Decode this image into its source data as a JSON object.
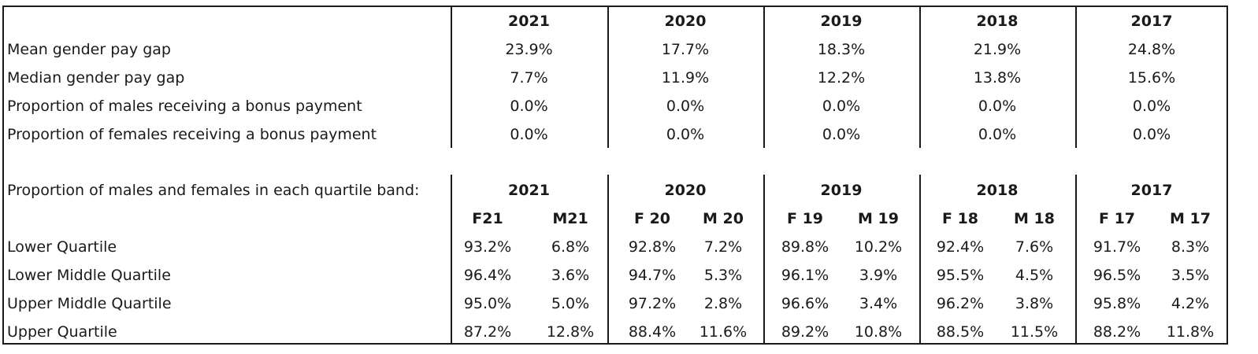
{
  "summary": {
    "years": [
      "2021",
      "2020",
      "2019",
      "2018",
      "2017"
    ],
    "rows": [
      {
        "label": "Mean gender pay gap",
        "values": [
          "23.9%",
          "17.7%",
          "18.3%",
          "21.9%",
          "24.8%"
        ]
      },
      {
        "label": "Median gender pay gap",
        "values": [
          "7.7%",
          "11.9%",
          "12.2%",
          "13.8%",
          "15.6%"
        ]
      },
      {
        "label": "Proportion of males receiving a bonus payment",
        "values": [
          "0.0%",
          "0.0%",
          "0.0%",
          "0.0%",
          "0.0%"
        ]
      },
      {
        "label": "Proportion of females receiving a bonus payment",
        "values": [
          "0.0%",
          "0.0%",
          "0.0%",
          "0.0%",
          "0.0%"
        ]
      }
    ]
  },
  "quartiles": {
    "heading": "Proportion of males and females in each quartile band:",
    "years": [
      "2021",
      "2020",
      "2019",
      "2018",
      "2017"
    ],
    "subheaders": [
      "F21",
      "M21",
      "F 20",
      "M 20",
      "F 19",
      "M 19",
      "F 18",
      "M 18",
      "F 17",
      "M 17"
    ],
    "rows": [
      {
        "label": "Lower Quartile",
        "values": [
          "93.2%",
          "6.8%",
          "92.8%",
          "7.2%",
          "89.8%",
          "10.2%",
          "92.4%",
          "7.6%",
          "91.7%",
          "8.3%"
        ]
      },
      {
        "label": "Lower Middle Quartile",
        "values": [
          "96.4%",
          "3.6%",
          "94.7%",
          "5.3%",
          "96.1%",
          "3.9%",
          "95.5%",
          "4.5%",
          "96.5%",
          "3.5%"
        ]
      },
      {
        "label": "Upper Middle Quartile",
        "values": [
          "95.0%",
          "5.0%",
          "97.2%",
          "2.8%",
          "96.6%",
          "3.4%",
          "96.2%",
          "3.8%",
          "95.8%",
          "4.2%"
        ]
      },
      {
        "label": "Upper Quartile",
        "values": [
          "87.2%",
          "12.8%",
          "88.4%",
          "11.6%",
          "89.2%",
          "10.8%",
          "88.5%",
          "11.5%",
          "88.2%",
          "11.8%"
        ]
      }
    ]
  }
}
